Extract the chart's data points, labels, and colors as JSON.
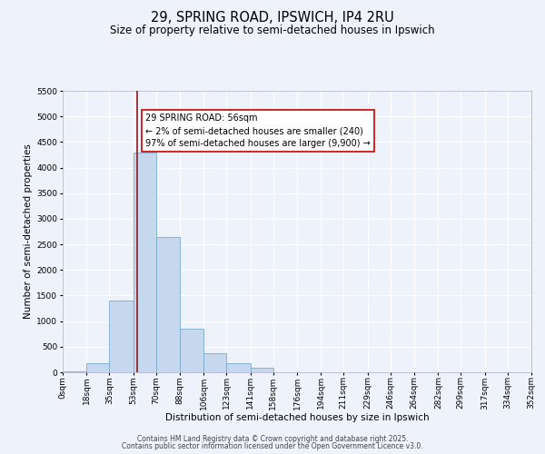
{
  "title": "29, SPRING ROAD, IPSWICH, IP4 2RU",
  "subtitle": "Size of property relative to semi-detached houses in Ipswich",
  "xlabel": "Distribution of semi-detached houses by size in Ipswich",
  "ylabel": "Number of semi-detached properties",
  "bin_edges": [
    0,
    18,
    35,
    53,
    70,
    88,
    106,
    123,
    141,
    158,
    176,
    194,
    211,
    229,
    246,
    264,
    282,
    299,
    317,
    334,
    352
  ],
  "bin_labels": [
    "0sqm",
    "18sqm",
    "35sqm",
    "53sqm",
    "70sqm",
    "88sqm",
    "106sqm",
    "123sqm",
    "141sqm",
    "158sqm",
    "176sqm",
    "194sqm",
    "211sqm",
    "229sqm",
    "246sqm",
    "264sqm",
    "282sqm",
    "299sqm",
    "317sqm",
    "334sqm",
    "352sqm"
  ],
  "counts": [
    25,
    170,
    1400,
    4300,
    2650,
    850,
    380,
    170,
    80,
    0,
    0,
    0,
    0,
    0,
    0,
    0,
    0,
    0,
    0,
    0
  ],
  "bar_color": "#c5d8ed",
  "bar_edge_color": "#7aaaca",
  "bg_color": "#eef2fa",
  "grid_color": "#ffffff",
  "property_line_x": 56,
  "property_line_color": "#8b1a1a",
  "annotation_title": "29 SPRING ROAD: 56sqm",
  "annotation_line1": "← 2% of semi-detached houses are smaller (240)",
  "annotation_line2": "97% of semi-detached houses are larger (9,900) →",
  "annotation_box_facecolor": "#ffffff",
  "annotation_box_edgecolor": "#cc0000",
  "ylim": [
    0,
    5500
  ],
  "yticks": [
    0,
    500,
    1000,
    1500,
    2000,
    2500,
    3000,
    3500,
    4000,
    4500,
    5000,
    5500
  ],
  "footer1": "Contains HM Land Registry data © Crown copyright and database right 2025.",
  "footer2": "Contains public sector information licensed under the Open Government Licence v3.0.",
  "title_fontsize": 10.5,
  "subtitle_fontsize": 8.5,
  "axis_label_fontsize": 7.5,
  "tick_fontsize": 6.5,
  "annotation_fontsize": 7,
  "footer_fontsize": 5.5
}
